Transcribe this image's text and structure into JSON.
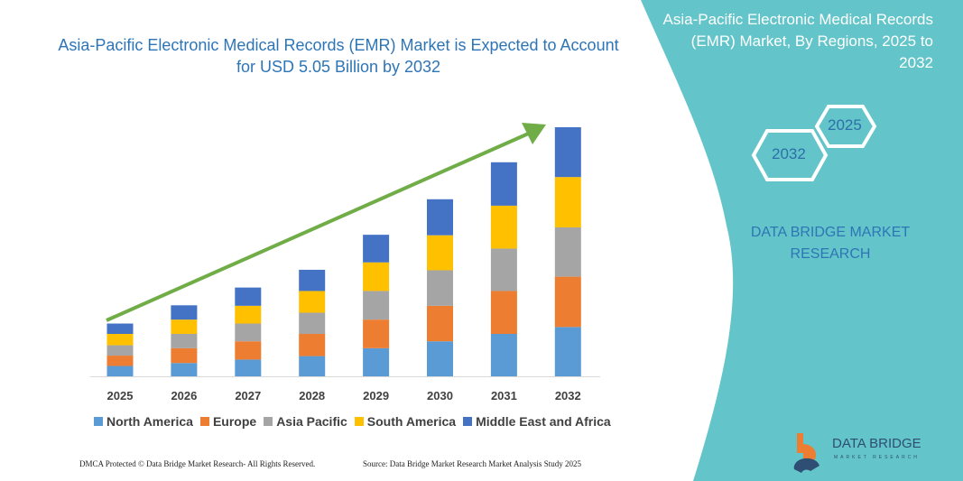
{
  "title": "Asia-Pacific Electronic Medical Records (EMR) Market is Expected to Account for USD 5.05 Billion by 2032",
  "side_panel": {
    "title": "Asia-Pacific Electronic Medical Records (EMR) Market, By Regions, 2025 to 2032",
    "hex_start": "2025",
    "hex_end": "2032",
    "brand": "DATA BRIDGE MARKET RESEARCH",
    "color": "#63c5c9"
  },
  "footer": {
    "dmca": "DMCA Protected © Data Bridge Market Research- All Rights Reserved.",
    "source": "Source: Data Bridge Market Research Market Analysis Study 2025"
  },
  "logo": {
    "name": "DATA BRIDGE",
    "sub": "MARKET RESEARCH"
  },
  "chart_data": {
    "type": "bar",
    "stacked": true,
    "title": "Asia-Pacific Electronic Medical Records (EMR) Market is Expected to Account for USD 5.05 Billion by 2032",
    "categories": [
      "2025",
      "2026",
      "2027",
      "2028",
      "2029",
      "2030",
      "2031",
      "2032"
    ],
    "series": [
      {
        "name": "North America",
        "color": "#5b9bd5",
        "values": [
          0.21,
          0.27,
          0.34,
          0.41,
          0.57,
          0.71,
          0.86,
          1.0
        ]
      },
      {
        "name": "Europe",
        "color": "#ed7d31",
        "values": [
          0.21,
          0.3,
          0.37,
          0.45,
          0.58,
          0.72,
          0.87,
          1.02
        ]
      },
      {
        "name": "Asia Pacific",
        "color": "#a5a5a5",
        "values": [
          0.21,
          0.29,
          0.36,
          0.43,
          0.58,
          0.72,
          0.86,
          1.0
        ]
      },
      {
        "name": "South America",
        "color": "#ffc000",
        "values": [
          0.23,
          0.29,
          0.36,
          0.44,
          0.58,
          0.71,
          0.87,
          1.02
        ]
      },
      {
        "name": "Middle East and Africa",
        "color": "#4472c4",
        "values": [
          0.21,
          0.29,
          0.37,
          0.43,
          0.56,
          0.73,
          0.88,
          1.01
        ]
      }
    ],
    "ylim": [
      0,
      5.05
    ],
    "y_axis_shown": false,
    "grid": false,
    "legend": "bottom",
    "trend_arrow_color": "#70ad47"
  }
}
